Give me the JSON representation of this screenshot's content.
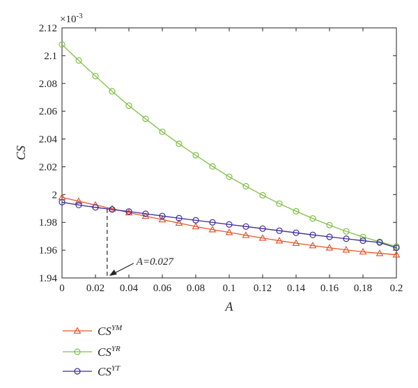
{
  "chart_data": {
    "type": "line",
    "xlabel": "A",
    "ylabel": "CS",
    "y_multiplier_label": "×10",
    "y_multiplier_exp": "-3",
    "xlim": [
      0,
      0.2
    ],
    "ylim": [
      1.94,
      2.12
    ],
    "x_ticks": [
      "0",
      "0.02",
      "0.04",
      "0.06",
      "0.08",
      "0.1",
      "0.12",
      "0.14",
      "0.16",
      "0.18",
      "0.2"
    ],
    "y_ticks": [
      "1.94",
      "1.96",
      "1.98",
      "2",
      "2.02",
      "2.04",
      "2.06",
      "2.08",
      "2.1",
      "2.12"
    ],
    "grid": false,
    "legend_position": "bottom-left",
    "x": [
      0,
      0.01,
      0.02,
      0.03,
      0.04,
      0.05,
      0.06,
      0.07,
      0.08,
      0.09,
      0.1,
      0.11,
      0.12,
      0.13,
      0.14,
      0.15,
      0.16,
      0.17,
      0.18,
      0.19,
      0.2
    ],
    "series": [
      {
        "name": "CS",
        "name_sup": "YM",
        "color": "#e8542a",
        "marker": "triangle",
        "values": [
          1.998,
          1.9952,
          1.9925,
          1.9898,
          1.987,
          1.9845,
          1.982,
          1.9795,
          1.977,
          1.9748,
          1.9728,
          1.9707,
          1.9687,
          1.9668,
          1.965,
          1.9633,
          1.9617,
          1.9602,
          1.9588,
          1.9577,
          1.9567
        ]
      },
      {
        "name": "CS",
        "name_sup": "YR",
        "color": "#7dc142",
        "marker": "circle",
        "values": [
          2.108,
          2.0965,
          2.0853,
          2.0743,
          2.064,
          2.0545,
          2.0452,
          2.0365,
          2.0283,
          2.0203,
          2.0128,
          2.006,
          1.9995,
          1.9935,
          1.988,
          1.9828,
          1.978,
          1.9735,
          1.9695,
          1.966,
          1.9627
        ]
      },
      {
        "name": "CS",
        "name_sup": "YT",
        "color": "#3a2aa0",
        "marker": "circle",
        "values": [
          1.9945,
          1.9925,
          1.9908,
          1.9893,
          1.9878,
          1.9862,
          1.9846,
          1.983,
          1.9815,
          1.98,
          1.9785,
          1.977,
          1.9755,
          1.974,
          1.9725,
          1.971,
          1.9696,
          1.9682,
          1.9668,
          1.9655,
          1.9617
        ]
      }
    ],
    "annotation": {
      "text": "A=0.027",
      "x": 0.027,
      "y": 1.9897
    }
  }
}
